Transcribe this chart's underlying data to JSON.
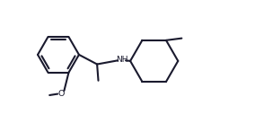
{
  "bg_color": "#ffffff",
  "bond_color": "#1a1a2e",
  "o_color": "#1a1a2e",
  "lw": 1.5,
  "figw": 2.84,
  "figh": 1.47,
  "dpi": 100,
  "xlim": [
    0,
    10
  ],
  "ylim": [
    0,
    5.2
  ]
}
